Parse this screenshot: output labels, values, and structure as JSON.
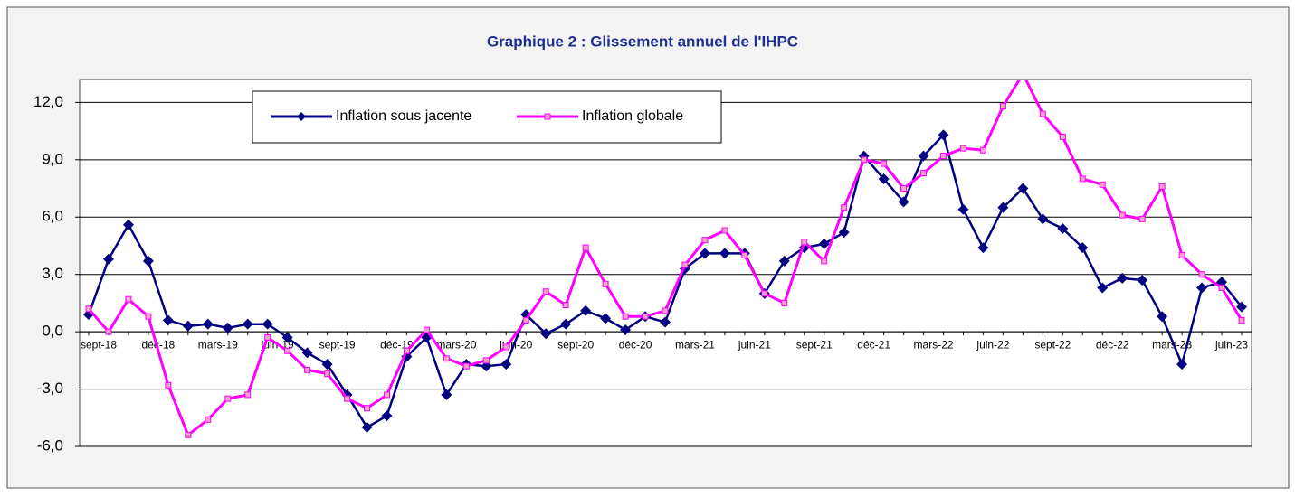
{
  "chart_data": {
    "type": "line",
    "title": "Graphique 2 : Glissement  annuel de l'IHPC",
    "categories": [
      "sept-18",
      null,
      null,
      "déc-18",
      null,
      null,
      "mars-19",
      null,
      null,
      "juin-19",
      null,
      null,
      "sept-19",
      null,
      null,
      "déc-19",
      null,
      null,
      "mars-20",
      null,
      null,
      "juin-20",
      null,
      null,
      "sept-20",
      null,
      null,
      "déc-20",
      null,
      null,
      "mars-21",
      null,
      null,
      "juin-21",
      null,
      null,
      "sept-21",
      null,
      null,
      "déc-21",
      null,
      null,
      "mars-22",
      null,
      null,
      "juin-22",
      null,
      null,
      "sept-22",
      null,
      null,
      "déc-22",
      null,
      null,
      "mars-23",
      null,
      null,
      "juin-23",
      null
    ],
    "series": [
      {
        "name": "Inflation sous jacente",
        "color": "#000080",
        "marker": "diamond",
        "values": [
          0.9,
          3.8,
          5.6,
          3.7,
          0.6,
          0.3,
          0.4,
          0.2,
          0.4,
          0.4,
          -0.3,
          -1.1,
          -1.7,
          -3.3,
          -5.0,
          -4.4,
          -1.3,
          -0.3,
          -3.3,
          -1.7,
          -1.8,
          -1.7,
          0.9,
          -0.1,
          0.4,
          1.1,
          0.7,
          0.1,
          0.8,
          0.5,
          3.3,
          4.1,
          4.1,
          4.1,
          2.0,
          3.7,
          4.4,
          4.6,
          5.2,
          9.2,
          8.0,
          6.8,
          9.2,
          10.3,
          6.4,
          4.4,
          6.5,
          7.5,
          5.9,
          5.4,
          4.4,
          2.3,
          2.8,
          2.7,
          0.8,
          -1.7,
          2.3,
          2.6,
          1.3
        ]
      },
      {
        "name": "Inflation globale",
        "color": "#ff00ff",
        "marker": "square",
        "values": [
          1.2,
          0.0,
          1.7,
          0.8,
          -2.8,
          -5.4,
          -4.6,
          -3.5,
          -3.3,
          -0.3,
          -1.0,
          -2.0,
          -2.2,
          -3.5,
          -4.0,
          -3.3,
          -1.0,
          0.1,
          -1.4,
          -1.8,
          -1.5,
          -0.8,
          0.6,
          2.1,
          1.4,
          4.4,
          2.5,
          0.8,
          0.8,
          1.1,
          3.5,
          4.8,
          5.3,
          4.0,
          2.0,
          1.5,
          4.7,
          3.7,
          6.5,
          9.0,
          8.8,
          7.5,
          8.3,
          9.2,
          9.6,
          9.5,
          11.8,
          13.5,
          11.4,
          10.2,
          8.0,
          7.7,
          6.1,
          5.9,
          7.6,
          4.0,
          3.0,
          2.3,
          0.6
        ]
      }
    ],
    "ylim": [
      -6,
      13.2
    ],
    "yticks": [
      {
        "value": -6,
        "label": "-6,0"
      },
      {
        "value": -3,
        "label": "-3,0"
      },
      {
        "value": 0,
        "label": "0,0"
      },
      {
        "value": 3,
        "label": "3,0"
      },
      {
        "value": 6,
        "label": "6,0"
      },
      {
        "value": 9,
        "label": "9,0"
      },
      {
        "value": 12,
        "label": "12,0"
      }
    ],
    "grid": true,
    "legend_position": "top-left"
  }
}
